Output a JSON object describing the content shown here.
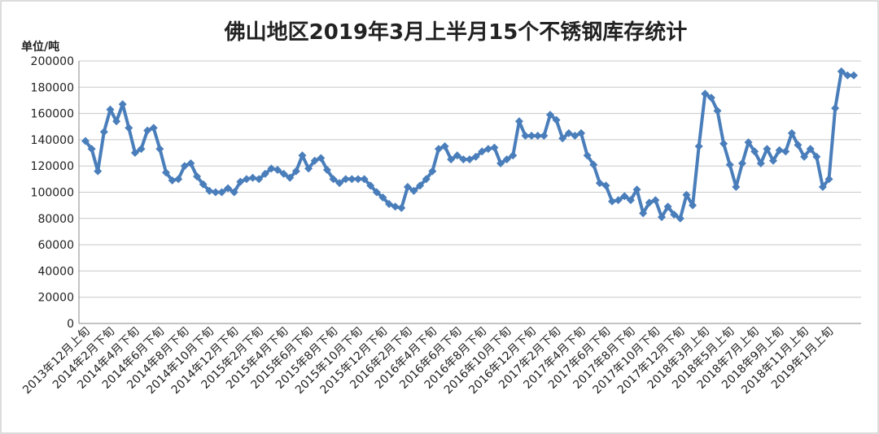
{
  "chart_data": {
    "type": "line",
    "title": "佛山地区2019年3月上半月15个不锈钢库存统计",
    "y_label": "单位/吨",
    "color": "#4a7ebb",
    "grid": true,
    "ylim": [
      0,
      200000
    ],
    "yticks": [
      0,
      20000,
      40000,
      60000,
      80000,
      100000,
      120000,
      140000,
      160000,
      180000,
      200000
    ],
    "categories": [
      "2013年12月上旬",
      null,
      null,
      null,
      "2014年2月下旬",
      null,
      null,
      null,
      "2014年4月下旬",
      null,
      null,
      null,
      "2014年6月下旬",
      null,
      null,
      null,
      "2014年8月下旬",
      null,
      null,
      null,
      "2014年10月下旬",
      null,
      null,
      null,
      "2014年12月下旬",
      null,
      null,
      null,
      "2015年2月下旬",
      null,
      null,
      null,
      "2015年4月下旬",
      null,
      null,
      null,
      "2015年6月下旬",
      null,
      null,
      null,
      "2015年8月下旬",
      null,
      null,
      null,
      "2015年10月下旬",
      null,
      null,
      null,
      "2015年12月下旬",
      null,
      null,
      null,
      "2016年2月下旬",
      null,
      null,
      null,
      "2016年4月下旬",
      null,
      null,
      null,
      "2016年6月下旬",
      null,
      null,
      null,
      "2016年8月下旬",
      null,
      null,
      null,
      "2016年10月下旬",
      null,
      null,
      null,
      "2016年12月下旬",
      null,
      null,
      null,
      "2017年2月下旬",
      null,
      null,
      null,
      "2017年4月下旬",
      null,
      null,
      null,
      "2017年6月下旬",
      null,
      null,
      null,
      "2017年8月下旬",
      null,
      null,
      null,
      "2017年10月下旬",
      null,
      null,
      null,
      "2017年12月下旬",
      null,
      null,
      null,
      "2018年3月上旬",
      null,
      null,
      null,
      "2018年5月上旬",
      null,
      null,
      null,
      "2018年7月上旬",
      null,
      null,
      null,
      "2018年9月上旬",
      null,
      null,
      null,
      "2018年11月上旬",
      null,
      null,
      null,
      "2019年1月上旬",
      null,
      null,
      null,
      null
    ],
    "values": [
      139000,
      133000,
      116000,
      146000,
      163000,
      154000,
      167000,
      149000,
      130000,
      133000,
      147000,
      149000,
      133000,
      115000,
      109000,
      110000,
      120000,
      122000,
      112000,
      106000,
      101000,
      100000,
      100000,
      103000,
      100000,
      108000,
      110000,
      111000,
      110000,
      114000,
      118000,
      117000,
      114000,
      111000,
      116000,
      128000,
      118000,
      124000,
      126000,
      117000,
      110000,
      107000,
      110000,
      110000,
      110000,
      110000,
      105000,
      100000,
      96000,
      91000,
      89000,
      88000,
      104000,
      101000,
      105000,
      110000,
      116000,
      133000,
      135000,
      125000,
      128000,
      125000,
      125000,
      127000,
      131000,
      133000,
      134000,
      122000,
      125000,
      128000,
      154000,
      143000,
      143000,
      143000,
      143000,
      159000,
      155000,
      141000,
      145000,
      143000,
      145000,
      128000,
      121000,
      107000,
      105000,
      93000,
      94000,
      97000,
      94000,
      102000,
      84000,
      92000,
      94000,
      81000,
      89000,
      83000,
      80000,
      98000,
      90000,
      135000,
      175000,
      172000,
      162000,
      137000,
      121000,
      104000,
      122000,
      138000,
      131000,
      122000,
      133000,
      124000,
      132000,
      131000,
      145000,
      136000,
      127000,
      133000,
      127000,
      104000,
      110000,
      164000,
      192000,
      189000,
      189000
    ]
  }
}
